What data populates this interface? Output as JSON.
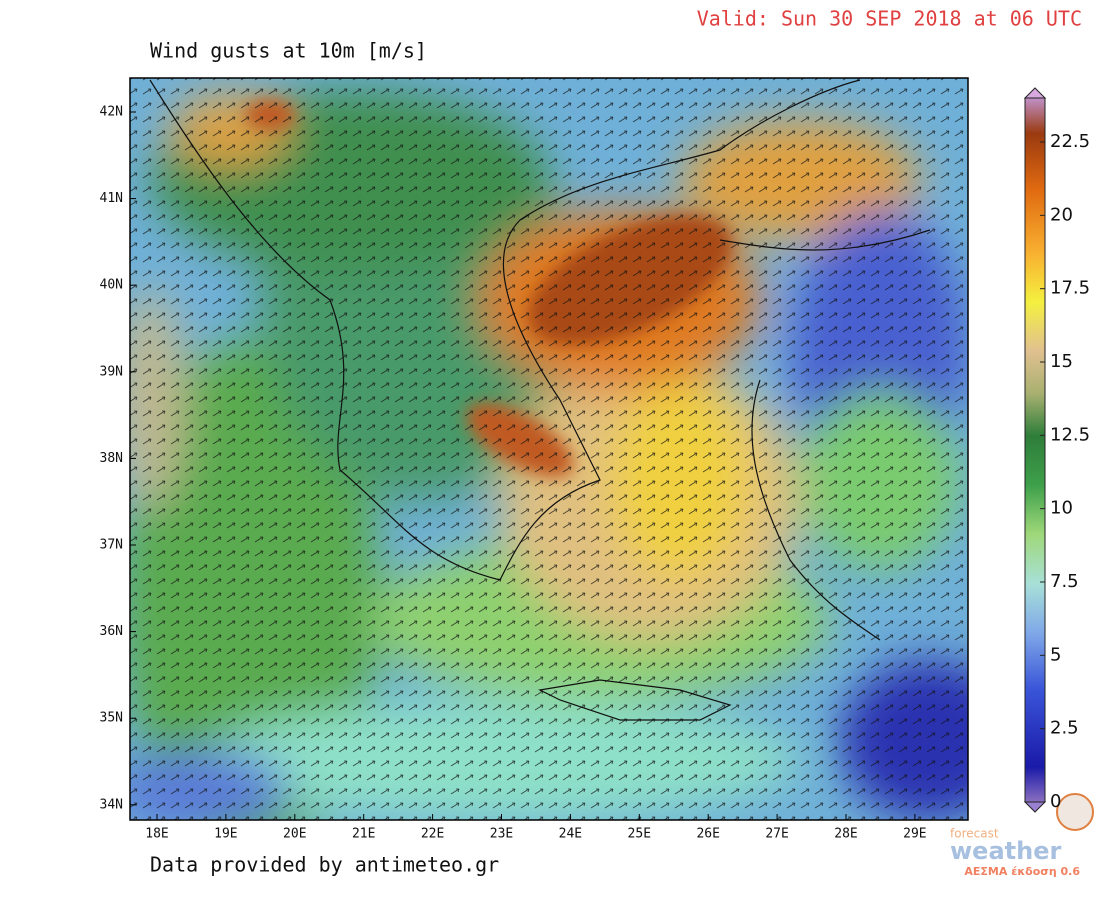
{
  "map": {
    "valid": "Valid: Sun 30 SEP 2018 at 06 UTC",
    "title": "Wind gusts at 10m [m/s]",
    "lat_labels": [
      "42N",
      "41N",
      "40N",
      "39N",
      "38N",
      "37N",
      "36N",
      "35N",
      "34N"
    ],
    "lon_labels": [
      "18E",
      "19E",
      "20E",
      "21E",
      "22E",
      "23E",
      "24E",
      "25E",
      "26E",
      "27E",
      "28E",
      "29E"
    ],
    "colorbar_ticks": [
      0,
      2.5,
      5,
      7.5,
      10,
      12.5,
      15,
      17.5,
      20,
      22.5
    ],
    "footer": "Data provided by antimeteo.gr",
    "logo": {
      "top": "forecast",
      "main": "weather",
      "sub": "ΑΕΣΜΑ έκδοση 0.6"
    }
  }
}
